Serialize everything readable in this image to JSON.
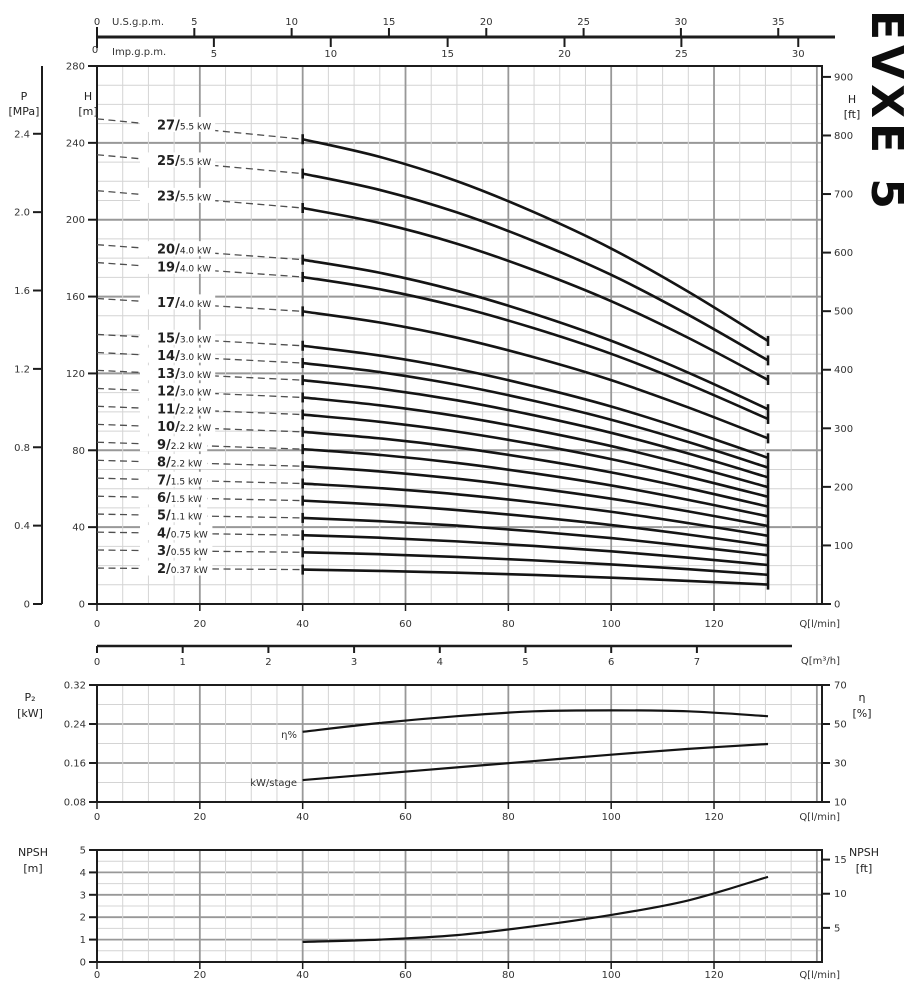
{
  "brand": {
    "model": "EVXE 5"
  },
  "chart_data": [
    {
      "id": "head-capacity-curves",
      "type": "line",
      "title": "Pump head vs flow for stage counts",
      "x_axes": {
        "usgpm": {
          "label": "U.S.g.p.m.",
          "ticks": [
            "0",
            "5",
            "10",
            "15",
            "20",
            "25",
            "30",
            "35"
          ]
        },
        "impgpm": {
          "label": "Imp.g.p.m.",
          "ticks": [
            "0",
            "5",
            "10",
            "15",
            "20",
            "25",
            "30"
          ]
        },
        "lmin": {
          "label": "Q[l/min]",
          "ticks": [
            "0",
            "20",
            "40",
            "60",
            "80",
            "100",
            "120"
          ]
        },
        "m3h": {
          "label": "Q[m³/h]",
          "ticks": [
            "0",
            "1",
            "2",
            "3",
            "4",
            "5",
            "6",
            "7"
          ]
        }
      },
      "y_axes": {
        "p_mpa": {
          "label": "P",
          "unit": "[MPa]",
          "ticks": [
            "0",
            "0.4",
            "0.8",
            "1.2",
            "1.6",
            "2.0",
            "2.4"
          ]
        },
        "h_m": {
          "label": "H",
          "unit": "[m]",
          "ticks": [
            "0",
            "40",
            "80",
            "120",
            "160",
            "200",
            "240",
            "280"
          ]
        },
        "h_ft": {
          "label": "H",
          "unit": "[ft]",
          "ticks": [
            "0",
            "100",
            "200",
            "300",
            "400",
            "500",
            "600",
            "700",
            "800",
            "900"
          ]
        }
      },
      "q_lmin_range": [
        0,
        141
      ],
      "h_m_range": [
        0,
        280
      ],
      "solid_q": [
        40,
        55,
        70,
        85,
        100,
        115,
        130.5
      ],
      "dashed_q": [
        0,
        40
      ],
      "curves": [
        {
          "stages": "27",
          "power": "5.5 kW",
          "h_solid": [
            241.9,
            232.7,
            220.1,
            203.9,
            185.0,
            162.5,
            136.9
          ],
          "h_dashed": [
            252.5,
            241.9
          ]
        },
        {
          "stages": "25",
          "power": "5.5 kW",
          "h_solid": [
            224.0,
            215.5,
            203.8,
            188.8,
            171.3,
            150.5,
            126.8
          ],
          "h_dashed": [
            233.8,
            224.0
          ]
        },
        {
          "stages": "23",
          "power": "5.5 kW",
          "h_solid": [
            206.1,
            198.3,
            187.5,
            173.7,
            157.6,
            138.5,
            116.6
          ],
          "h_dashed": [
            215.1,
            206.1
          ]
        },
        {
          "stages": "20",
          "power": "4.0 kW",
          "h_solid": [
            179.2,
            172.4,
            163.0,
            151.0,
            137.0,
            120.4,
            101.4
          ],
          "h_dashed": [
            187.0,
            179.2
          ]
        },
        {
          "stages": "19",
          "power": "4.0 kW",
          "h_solid": [
            170.2,
            163.8,
            154.9,
            143.5,
            130.2,
            114.4,
            96.3
          ],
          "h_dashed": [
            177.7,
            170.2
          ]
        },
        {
          "stages": "17",
          "power": "4.0 kW",
          "h_solid": [
            152.3,
            146.5,
            138.6,
            128.4,
            116.5,
            102.3,
            86.2
          ],
          "h_dashed": [
            159.0,
            152.3
          ]
        },
        {
          "stages": "15",
          "power": "3.0 kW",
          "h_solid": [
            134.4,
            129.3,
            122.3,
            113.3,
            102.8,
            90.3,
            76.1
          ],
          "h_dashed": [
            140.3,
            134.4
          ]
        },
        {
          "stages": "14",
          "power": "3.0 kW",
          "h_solid": [
            125.4,
            120.7,
            114.1,
            105.7,
            95.9,
            84.3,
            71.0
          ],
          "h_dashed": [
            130.9,
            125.4
          ]
        },
        {
          "stages": "13",
          "power": "3.0 kW",
          "h_solid": [
            116.5,
            112.1,
            106.0,
            98.2,
            89.1,
            78.3,
            65.9
          ],
          "h_dashed": [
            121.6,
            116.5
          ]
        },
        {
          "stages": "12",
          "power": "3.0 kW",
          "h_solid": [
            107.5,
            103.4,
            97.8,
            90.6,
            82.2,
            72.2,
            60.8
          ],
          "h_dashed": [
            112.2,
            107.5
          ]
        },
        {
          "stages": "11",
          "power": "2.2 kW",
          "h_solid": [
            98.6,
            94.8,
            89.7,
            83.1,
            75.4,
            66.2,
            55.8
          ],
          "h_dashed": [
            102.9,
            98.6
          ]
        },
        {
          "stages": "10",
          "power": "2.2 kW",
          "h_solid": [
            89.6,
            86.2,
            81.5,
            75.5,
            68.5,
            60.2,
            50.7
          ],
          "h_dashed": [
            93.5,
            89.6
          ]
        },
        {
          "stages": "9",
          "power": "2.2 kW",
          "h_solid": [
            80.6,
            77.6,
            73.4,
            68.0,
            61.7,
            54.2,
            45.6
          ],
          "h_dashed": [
            84.2,
            80.6
          ]
        },
        {
          "stages": "8",
          "power": "2.2 kW",
          "h_solid": [
            71.7,
            69.0,
            65.2,
            60.4,
            54.8,
            48.2,
            40.6
          ],
          "h_dashed": [
            74.8,
            71.7
          ]
        },
        {
          "stages": "7",
          "power": "1.5 kW",
          "h_solid": [
            62.7,
            60.3,
            57.1,
            52.9,
            48.0,
            42.1,
            35.5
          ],
          "h_dashed": [
            65.5,
            62.7
          ]
        },
        {
          "stages": "6",
          "power": "1.5 kW",
          "h_solid": [
            53.8,
            51.7,
            48.9,
            45.3,
            41.1,
            36.1,
            30.4
          ],
          "h_dashed": [
            56.1,
            53.8
          ]
        },
        {
          "stages": "5",
          "power": "1.1 kW",
          "h_solid": [
            44.8,
            43.1,
            40.8,
            37.8,
            34.3,
            30.1,
            25.4
          ],
          "h_dashed": [
            46.8,
            44.8
          ]
        },
        {
          "stages": "4",
          "power": "0.75 kW",
          "h_solid": [
            35.8,
            34.5,
            32.6,
            30.2,
            27.4,
            24.1,
            20.3
          ],
          "h_dashed": [
            37.4,
            35.8
          ]
        },
        {
          "stages": "3",
          "power": "0.55 kW",
          "h_solid": [
            26.9,
            25.9,
            24.5,
            22.7,
            20.6,
            18.1,
            15.2
          ],
          "h_dashed": [
            28.1,
            26.9
          ]
        },
        {
          "stages": "2",
          "power": "0.37 kW",
          "h_solid": [
            17.9,
            17.2,
            16.3,
            15.1,
            13.7,
            12.0,
            10.1
          ],
          "h_dashed": [
            18.7,
            17.9
          ]
        }
      ]
    },
    {
      "id": "power-efficiency",
      "type": "line",
      "left_axis": {
        "label": "P₂",
        "unit": "[kW]",
        "ticks": [
          "0.08",
          "0.16",
          "0.24",
          "0.32"
        ]
      },
      "right_axis": {
        "label": "η",
        "unit": "[%]",
        "ticks": [
          "10",
          "30",
          "50",
          "70"
        ]
      },
      "bottom_axis": {
        "label": "Q[l/min]",
        "ticks": [
          "0",
          "20",
          "40",
          "60",
          "80",
          "100",
          "120"
        ]
      },
      "p2_range": [
        0.08,
        0.32
      ],
      "eta_range": [
        10,
        70
      ],
      "series": [
        {
          "name": "η%",
          "axis": "eta",
          "points": [
            [
              40,
              46
            ],
            [
              55,
              50.5
            ],
            [
              70,
              54
            ],
            [
              85,
              56.5
            ],
            [
              100,
              57
            ],
            [
              115,
              56.5
            ],
            [
              130.5,
              54
            ]
          ]
        },
        {
          "name": "kW/stage",
          "axis": "p2",
          "points": [
            [
              40,
              0.125
            ],
            [
              55,
              0.138
            ],
            [
              70,
              0.151
            ],
            [
              85,
              0.164
            ],
            [
              100,
              0.177
            ],
            [
              115,
              0.189
            ],
            [
              130.5,
              0.199
            ]
          ]
        }
      ]
    },
    {
      "id": "npsh",
      "type": "line",
      "left_axis": {
        "label": "NPSH",
        "unit": "[m]",
        "ticks": [
          "0",
          "1",
          "2",
          "3",
          "4",
          "5"
        ]
      },
      "right_axis": {
        "label": "NPSH",
        "unit": "[ft]",
        "ticks": [
          "5",
          "10",
          "15"
        ]
      },
      "bottom_axis": {
        "label": "Q[l/min]",
        "ticks": [
          "0",
          "20",
          "40",
          "60",
          "80",
          "100",
          "120"
        ]
      },
      "npsh_m_range": [
        0,
        5
      ],
      "points": [
        [
          40,
          0.9
        ],
        [
          55,
          1.0
        ],
        [
          70,
          1.2
        ],
        [
          85,
          1.6
        ],
        [
          100,
          2.1
        ],
        [
          115,
          2.75
        ],
        [
          130.5,
          3.8
        ]
      ]
    }
  ]
}
